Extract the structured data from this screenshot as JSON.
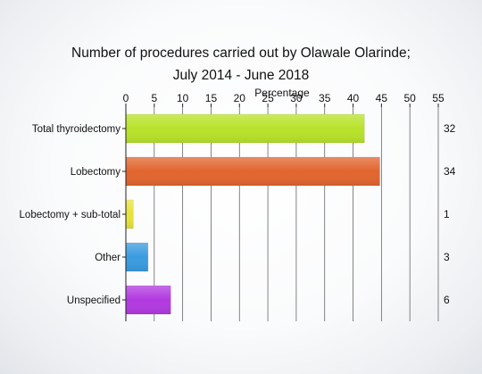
{
  "chart_data": {
    "type": "bar",
    "orientation": "horizontal",
    "title": "Number of procedures carried out by Olawale Olarinde;",
    "subtitle": "July 2014 - June 2018",
    "xlabel": "Percentage",
    "xlim": [
      0,
      55
    ],
    "xticks": [
      0,
      5,
      10,
      15,
      20,
      25,
      30,
      35,
      40,
      45,
      50,
      55
    ],
    "grid": true,
    "categories": [
      "Total thyroidectomy",
      "Lobectomy",
      "Lobectomy + sub-total",
      "Other",
      "Unspecified"
    ],
    "values": [
      42,
      44.7,
      1.3,
      3.9,
      7.9
    ],
    "counts": [
      "32",
      "34",
      "1",
      "3",
      "6"
    ],
    "colors": [
      "#b8e22a",
      "#e2652f",
      "#e8e23a",
      "#3a9be0",
      "#b23ae0"
    ]
  }
}
